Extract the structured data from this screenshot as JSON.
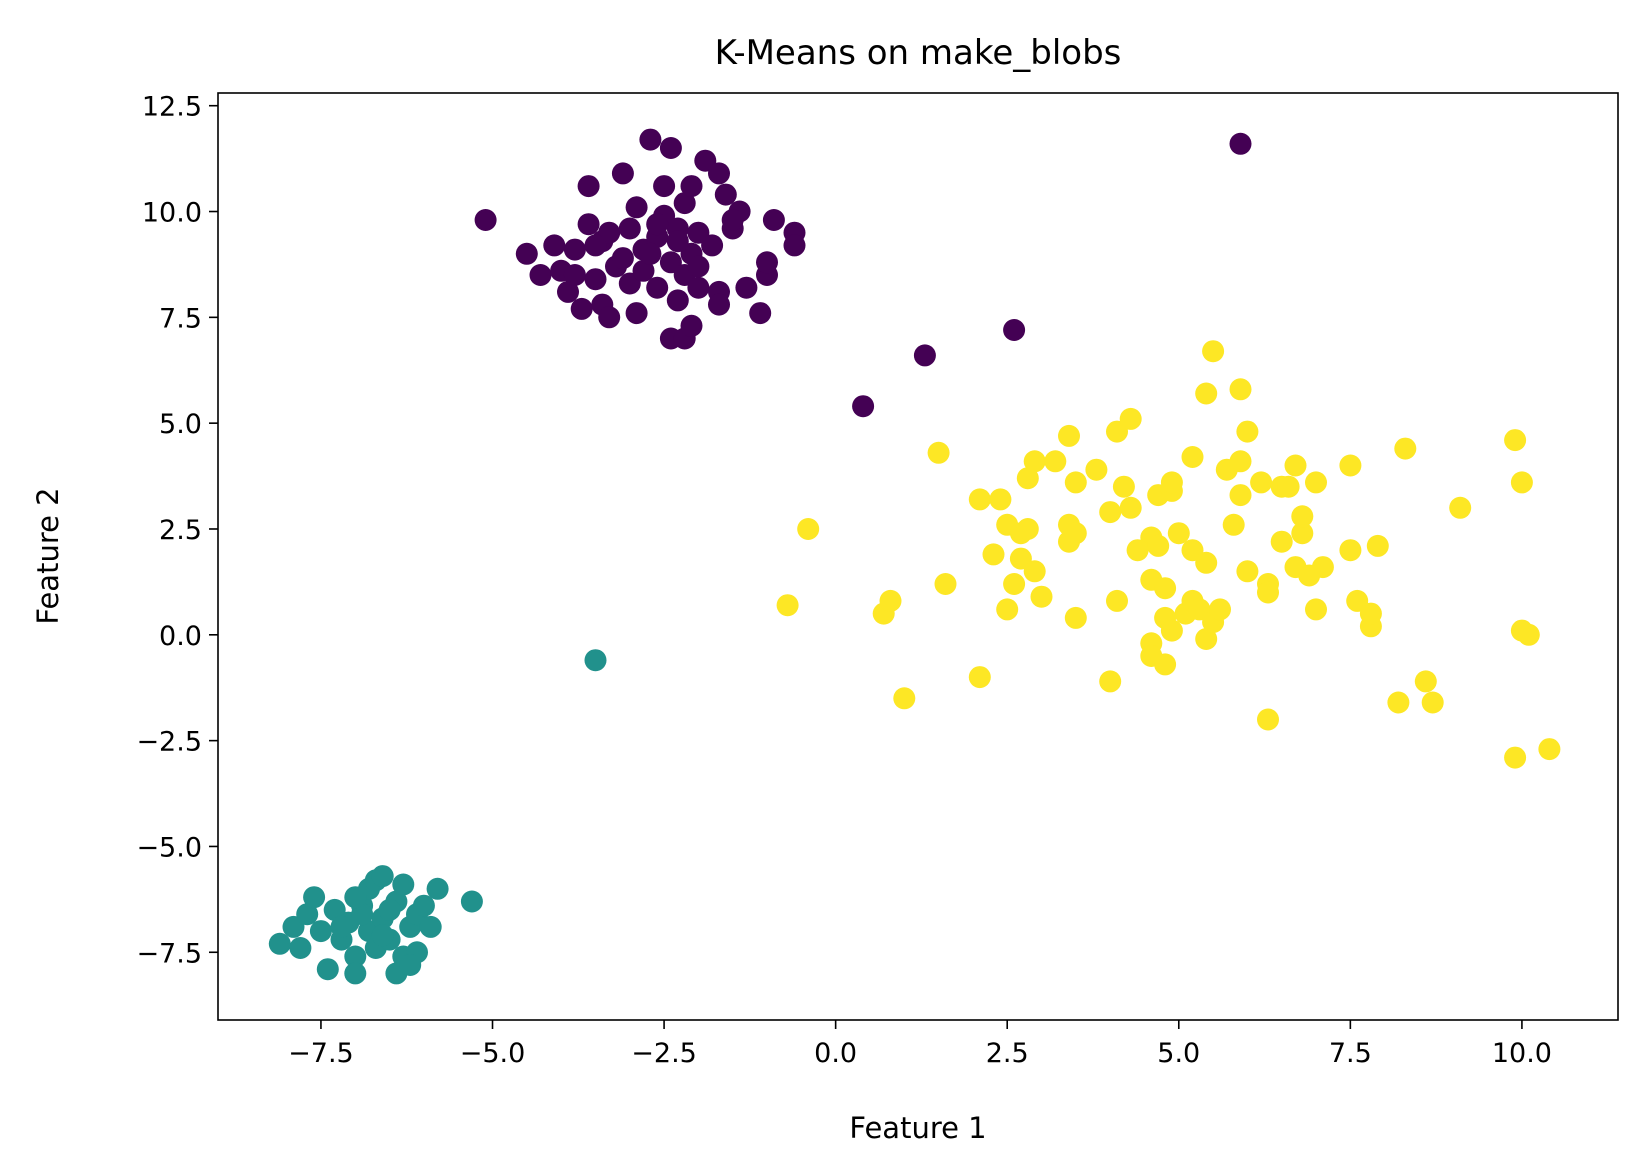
{
  "chart_data": {
    "type": "scatter",
    "title": "K-Means on make_blobs",
    "xlabel": "Feature 1",
    "ylabel": "Feature 2",
    "xlim": [
      -9.0,
      11.4
    ],
    "ylim": [
      -9.1,
      12.8
    ],
    "xticks": [
      {
        "value": -7.5,
        "label": "−7.5"
      },
      {
        "value": -5.0,
        "label": "−5.0"
      },
      {
        "value": -2.5,
        "label": "−2.5"
      },
      {
        "value": 0.0,
        "label": "0.0"
      },
      {
        "value": 2.5,
        "label": "2.5"
      },
      {
        "value": 5.0,
        "label": "5.0"
      },
      {
        "value": 7.5,
        "label": "7.5"
      },
      {
        "value": 10.0,
        "label": "10.0"
      }
    ],
    "yticks": [
      {
        "value": -7.5,
        "label": "−7.5"
      },
      {
        "value": -5.0,
        "label": "−5.0"
      },
      {
        "value": -2.5,
        "label": "−2.5"
      },
      {
        "value": 0.0,
        "label": "0.0"
      },
      {
        "value": 2.5,
        "label": "2.5"
      },
      {
        "value": 5.0,
        "label": "5.0"
      },
      {
        "value": 7.5,
        "label": "7.5"
      },
      {
        "value": 10.0,
        "label": "10.0"
      },
      {
        "value": 12.5,
        "label": "12.5"
      }
    ],
    "grid": false,
    "legend": "none",
    "series": [
      {
        "cluster": 0,
        "color": "#440154",
        "points": [
          [
            -5.1,
            9.8
          ],
          [
            -4.5,
            9.0
          ],
          [
            -4.3,
            8.5
          ],
          [
            -4.1,
            9.2
          ],
          [
            -4.0,
            8.6
          ],
          [
            -3.9,
            8.1
          ],
          [
            -3.8,
            9.1
          ],
          [
            -3.7,
            7.7
          ],
          [
            -3.6,
            9.7
          ],
          [
            -3.5,
            8.4
          ],
          [
            -3.4,
            7.8
          ],
          [
            -3.4,
            9.3
          ],
          [
            -3.3,
            9.5
          ],
          [
            -3.2,
            8.7
          ],
          [
            -3.1,
            10.9
          ],
          [
            -3.0,
            9.6
          ],
          [
            -3.0,
            8.3
          ],
          [
            -2.9,
            10.1
          ],
          [
            -2.8,
            9.1
          ],
          [
            -2.8,
            8.6
          ],
          [
            -2.7,
            11.7
          ],
          [
            -2.6,
            9.4
          ],
          [
            -2.6,
            8.2
          ],
          [
            -2.5,
            9.9
          ],
          [
            -2.5,
            10.6
          ],
          [
            -2.4,
            11.5
          ],
          [
            -2.4,
            8.8
          ],
          [
            -2.3,
            7.9
          ],
          [
            -2.3,
            9.6
          ],
          [
            -2.2,
            10.2
          ],
          [
            -2.2,
            8.5
          ],
          [
            -2.1,
            9.0
          ],
          [
            -2.1,
            10.6
          ],
          [
            -2.0,
            9.5
          ],
          [
            -2.0,
            8.2
          ],
          [
            -1.9,
            11.2
          ],
          [
            -1.8,
            9.2
          ],
          [
            -1.7,
            10.9
          ],
          [
            -1.7,
            8.1
          ],
          [
            -1.6,
            10.4
          ],
          [
            -1.5,
            9.6
          ],
          [
            -1.4,
            10.0
          ],
          [
            -1.3,
            8.2
          ],
          [
            -1.1,
            7.6
          ],
          [
            -1.0,
            8.5
          ],
          [
            -1.0,
            8.8
          ],
          [
            -0.9,
            9.8
          ],
          [
            -0.6,
            9.5
          ],
          [
            -0.6,
            9.2
          ],
          [
            -3.6,
            10.6
          ],
          [
            -3.3,
            7.5
          ],
          [
            -2.9,
            7.6
          ],
          [
            -2.4,
            7.0
          ],
          [
            -2.2,
            7.0
          ],
          [
            -2.1,
            7.3
          ],
          [
            -1.7,
            7.8
          ],
          [
            -2.7,
            9.0
          ],
          [
            -2.0,
            8.7
          ],
          [
            -3.1,
            8.9
          ],
          [
            -2.6,
            9.7
          ],
          [
            -3.8,
            8.5
          ],
          [
            -1.5,
            9.8
          ],
          [
            -2.3,
            9.3
          ],
          [
            -3.5,
            9.2
          ],
          [
            0.4,
            5.4
          ],
          [
            1.3,
            6.6
          ],
          [
            2.6,
            7.2
          ],
          [
            5.9,
            11.6
          ]
        ]
      },
      {
        "cluster": 1,
        "color": "#21918c",
        "points": [
          [
            -8.1,
            -7.3
          ],
          [
            -7.9,
            -6.9
          ],
          [
            -7.8,
            -7.4
          ],
          [
            -7.7,
            -6.6
          ],
          [
            -7.6,
            -6.2
          ],
          [
            -7.5,
            -7.0
          ],
          [
            -7.4,
            -7.9
          ],
          [
            -7.3,
            -6.5
          ],
          [
            -7.2,
            -7.2
          ],
          [
            -7.1,
            -6.8
          ],
          [
            -7.0,
            -7.6
          ],
          [
            -7.0,
            -8.0
          ],
          [
            -6.9,
            -6.4
          ],
          [
            -6.8,
            -7.0
          ],
          [
            -6.8,
            -6.0
          ],
          [
            -6.7,
            -7.4
          ],
          [
            -6.7,
            -5.8
          ],
          [
            -6.6,
            -6.7
          ],
          [
            -6.6,
            -5.7
          ],
          [
            -6.5,
            -7.2
          ],
          [
            -6.4,
            -8.0
          ],
          [
            -6.4,
            -6.3
          ],
          [
            -6.3,
            -5.9
          ],
          [
            -6.3,
            -7.6
          ],
          [
            -6.2,
            -6.9
          ],
          [
            -6.1,
            -6.6
          ],
          [
            -6.1,
            -7.5
          ],
          [
            -6.0,
            -6.4
          ],
          [
            -5.9,
            -6.9
          ],
          [
            -5.8,
            -6.0
          ],
          [
            -5.3,
            -6.3
          ],
          [
            -6.9,
            -6.6
          ],
          [
            -7.2,
            -6.9
          ],
          [
            -6.6,
            -7.1
          ],
          [
            -6.2,
            -7.8
          ],
          [
            -7.0,
            -6.2
          ],
          [
            -6.5,
            -6.5
          ],
          [
            -3.5,
            -0.6
          ]
        ]
      },
      {
        "cluster": 2,
        "color": "#fde725",
        "points": [
          [
            -0.7,
            0.7
          ],
          [
            -0.4,
            2.5
          ],
          [
            0.7,
            0.5
          ],
          [
            0.8,
            0.8
          ],
          [
            1.0,
            -1.5
          ],
          [
            1.5,
            4.3
          ],
          [
            1.6,
            1.2
          ],
          [
            2.1,
            -1.0
          ],
          [
            2.1,
            3.2
          ],
          [
            2.3,
            1.9
          ],
          [
            2.4,
            3.2
          ],
          [
            2.5,
            0.6
          ],
          [
            2.5,
            2.6
          ],
          [
            2.6,
            1.2
          ],
          [
            2.7,
            1.8
          ],
          [
            2.7,
            2.4
          ],
          [
            2.8,
            2.5
          ],
          [
            2.8,
            3.7
          ],
          [
            2.9,
            1.5
          ],
          [
            2.9,
            4.1
          ],
          [
            3.2,
            4.1
          ],
          [
            3.4,
            4.7
          ],
          [
            3.4,
            2.2
          ],
          [
            3.4,
            2.6
          ],
          [
            3.5,
            2.4
          ],
          [
            3.5,
            0.4
          ],
          [
            3.5,
            3.6
          ],
          [
            3.8,
            3.9
          ],
          [
            4.0,
            -1.1
          ],
          [
            4.1,
            4.8
          ],
          [
            4.1,
            0.8
          ],
          [
            4.2,
            3.5
          ],
          [
            4.3,
            3.0
          ],
          [
            4.3,
            5.1
          ],
          [
            4.6,
            2.3
          ],
          [
            4.6,
            1.3
          ],
          [
            4.6,
            -0.2
          ],
          [
            4.6,
            -0.5
          ],
          [
            4.7,
            2.1
          ],
          [
            4.7,
            3.3
          ],
          [
            4.8,
            -0.7
          ],
          [
            4.8,
            0.4
          ],
          [
            4.8,
            1.1
          ],
          [
            4.9,
            0.1
          ],
          [
            4.9,
            3.4
          ],
          [
            4.9,
            3.6
          ],
          [
            5.1,
            0.5
          ],
          [
            5.2,
            2.0
          ],
          [
            5.2,
            0.8
          ],
          [
            5.3,
            0.6
          ],
          [
            5.4,
            -0.1
          ],
          [
            5.4,
            1.7
          ],
          [
            5.4,
            5.7
          ],
          [
            5.5,
            6.7
          ],
          [
            5.5,
            0.3
          ],
          [
            5.6,
            0.6
          ],
          [
            5.7,
            3.9
          ],
          [
            5.9,
            4.1
          ],
          [
            5.9,
            3.3
          ],
          [
            5.9,
            5.8
          ],
          [
            6.0,
            1.5
          ],
          [
            6.0,
            4.8
          ],
          [
            6.2,
            3.6
          ],
          [
            6.3,
            1.2
          ],
          [
            6.3,
            1.0
          ],
          [
            6.3,
            -2.0
          ],
          [
            6.5,
            3.5
          ],
          [
            6.6,
            3.5
          ],
          [
            6.7,
            4.0
          ],
          [
            6.7,
            1.6
          ],
          [
            6.8,
            2.4
          ],
          [
            6.8,
            2.8
          ],
          [
            7.0,
            0.6
          ],
          [
            7.0,
            3.6
          ],
          [
            7.1,
            1.6
          ],
          [
            7.5,
            4.0
          ],
          [
            7.5,
            2.0
          ],
          [
            7.6,
            0.8
          ],
          [
            7.8,
            0.2
          ],
          [
            7.8,
            0.5
          ],
          [
            7.9,
            2.1
          ],
          [
            8.3,
            4.4
          ],
          [
            8.2,
            -1.6
          ],
          [
            8.6,
            -1.1
          ],
          [
            8.7,
            -1.6
          ],
          [
            9.1,
            3.0
          ],
          [
            9.9,
            4.6
          ],
          [
            10.0,
            3.6
          ],
          [
            10.0,
            0.1
          ],
          [
            10.1,
            0.0
          ],
          [
            9.9,
            -2.9
          ],
          [
            10.4,
            -2.7
          ],
          [
            5.0,
            2.4
          ],
          [
            4.4,
            2.0
          ],
          [
            5.8,
            2.6
          ],
          [
            3.0,
            0.9
          ],
          [
            6.9,
            1.4
          ],
          [
            5.2,
            4.2
          ],
          [
            4.0,
            2.9
          ],
          [
            6.5,
            2.2
          ]
        ]
      }
    ]
  }
}
